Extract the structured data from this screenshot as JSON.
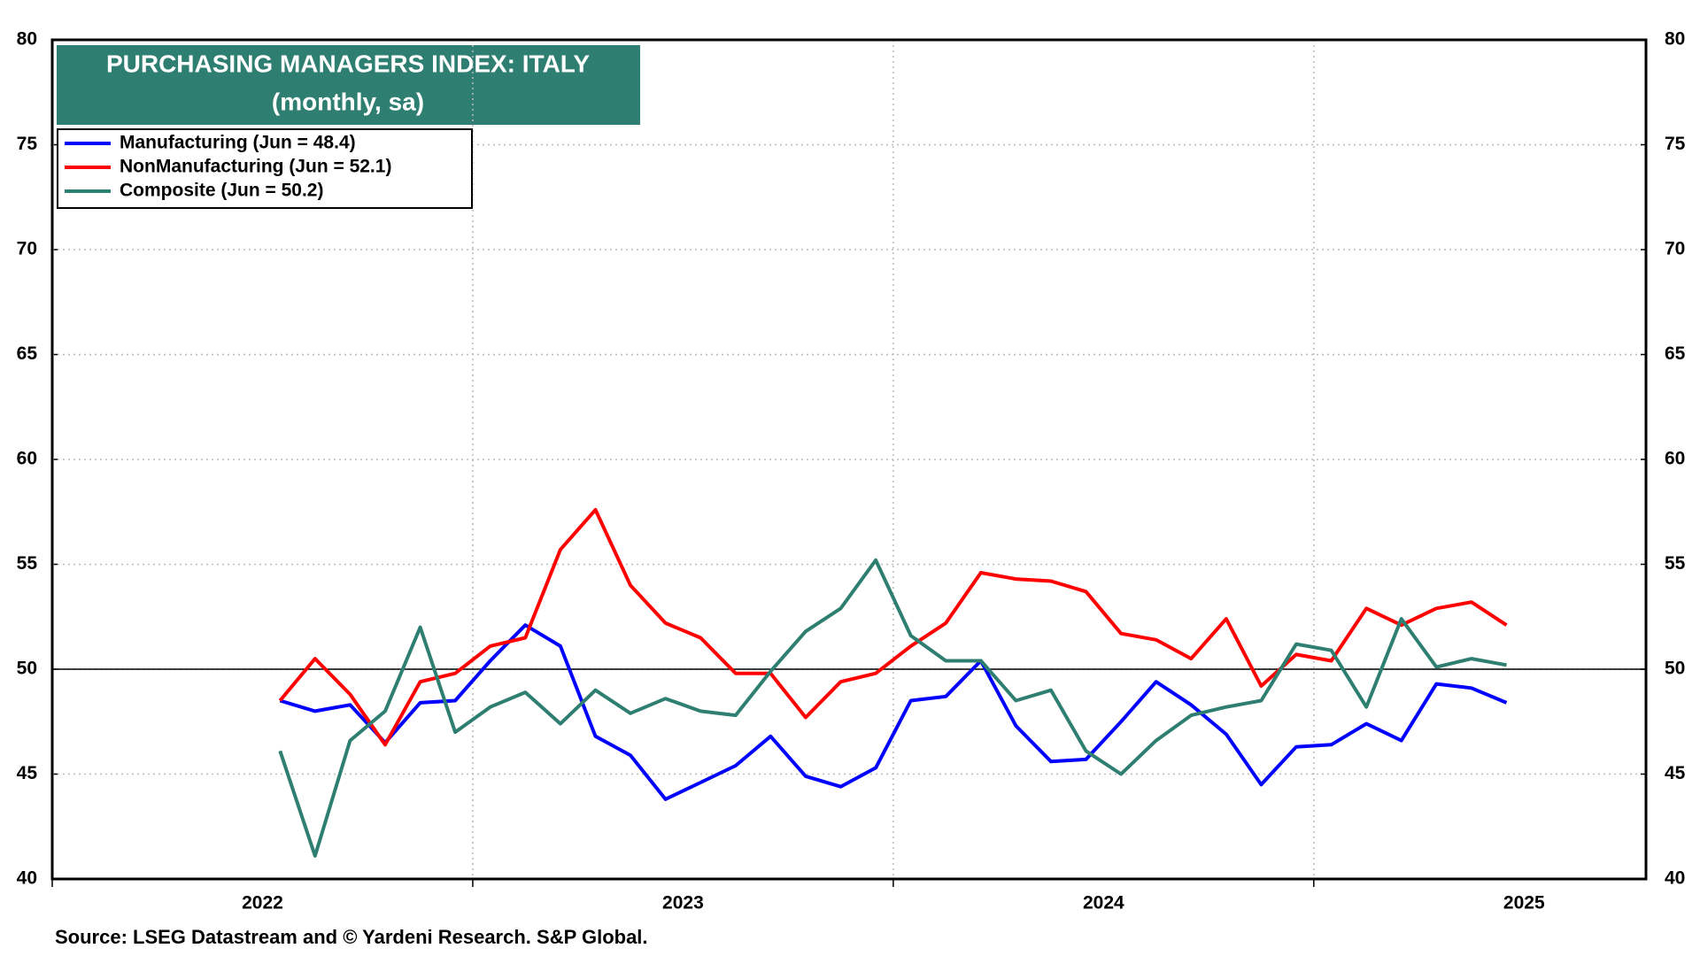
{
  "chart_data": {
    "type": "line",
    "title": "PURCHASING MANAGERS INDEX: ITALY",
    "subtitle": "(monthly, sa)",
    "source": "Source: LSEG Datastream and © Yardeni Research. S&P Global.",
    "x": [
      2022.5417,
      2022.625,
      2022.7083,
      2022.7917,
      2022.875,
      2022.9583,
      2023.0417,
      2023.125,
      2023.2083,
      2023.2917,
      2023.375,
      2023.4583,
      2023.5417,
      2023.625,
      2023.7083,
      2023.7917,
      2023.875,
      2023.9583,
      2024.0417,
      2024.125,
      2024.2083,
      2024.2917,
      2024.375,
      2024.4583,
      2024.5417,
      2024.625,
      2024.7083,
      2024.7917,
      2024.875,
      2024.9583,
      2025.0417,
      2025.125,
      2025.2083,
      2025.2917,
      2025.375,
      2025.4583
    ],
    "xlim": [
      2022,
      2025.79
    ],
    "xticks": [
      2022,
      2023,
      2024,
      2025
    ],
    "ylim": [
      40,
      80
    ],
    "yticks": [
      40,
      45,
      50,
      55,
      60,
      65,
      70,
      75,
      80
    ],
    "y2lim": [
      40,
      80
    ],
    "y2ticks": [
      40,
      45,
      50,
      55,
      60,
      65,
      70,
      75,
      80
    ],
    "hline": 50,
    "grid": true,
    "legend": "upper left",
    "series": [
      {
        "name": "Manufacturing (Jun = 48.4)",
        "color": "#0000ff",
        "values": [
          48.5,
          48.0,
          48.3,
          46.5,
          48.4,
          48.5,
          50.4,
          52.1,
          51.1,
          46.8,
          45.9,
          43.8,
          44.6,
          45.4,
          46.8,
          44.9,
          44.4,
          45.3,
          48.5,
          48.7,
          50.4,
          47.3,
          45.6,
          45.7,
          47.5,
          49.4,
          48.3,
          46.9,
          44.5,
          46.3,
          46.4,
          47.4,
          46.6,
          49.3,
          49.1,
          48.4
        ]
      },
      {
        "name": "NonManufacturing (Jun = 52.1)",
        "color": "#ff0000",
        "values": [
          48.5,
          50.5,
          48.8,
          46.4,
          49.4,
          49.8,
          51.1,
          51.5,
          55.7,
          57.6,
          54.0,
          52.2,
          51.5,
          49.8,
          49.8,
          47.7,
          49.4,
          49.8,
          51.1,
          52.2,
          54.6,
          54.3,
          54.2,
          53.7,
          51.7,
          51.4,
          50.5,
          52.4,
          49.2,
          50.7,
          50.4,
          52.9,
          52.1,
          52.9,
          53.2,
          52.1
        ]
      },
      {
        "name": "Composite (Jun = 50.2)",
        "color": "#2e7f71",
        "values": [
          46.1,
          41.1,
          46.6,
          48.0,
          52.0,
          47.0,
          48.2,
          48.9,
          47.4,
          49.0,
          47.9,
          48.6,
          48.0,
          47.8,
          49.9,
          51.8,
          52.9,
          55.2,
          51.6,
          50.4,
          50.4,
          48.5,
          49.0,
          46.1,
          45.0,
          46.6,
          47.8,
          48.2,
          48.5,
          51.2,
          50.9,
          48.2,
          52.4,
          50.1,
          50.5,
          50.2
        ]
      }
    ]
  }
}
